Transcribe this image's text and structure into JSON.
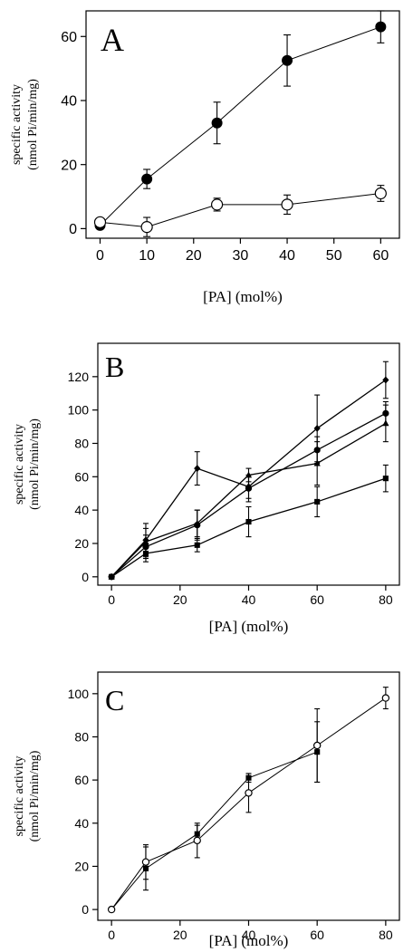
{
  "chart_data": [
    {
      "type": "line",
      "panel_label": "A",
      "xlabel": "[PA] (mol%)",
      "ylabel_lines": [
        "specific activity",
        "(nmol Pi/min/mg)"
      ],
      "xlim": [
        -3,
        64
      ],
      "ylim": [
        -3,
        68
      ],
      "x_ticks": [
        0,
        10,
        20,
        30,
        40,
        50,
        60
      ],
      "y_ticks": [
        0,
        20,
        40,
        60
      ],
      "grid": false,
      "series": [
        {
          "marker": "filled-circle",
          "x": [
            0,
            10,
            25,
            40,
            60
          ],
          "y": [
            1,
            15.5,
            33,
            52.5,
            63
          ],
          "err": [
            0.5,
            3,
            6.5,
            8,
            5
          ]
        },
        {
          "marker": "open-circle",
          "x": [
            0,
            10,
            25,
            40,
            60
          ],
          "y": [
            2,
            0.5,
            7.5,
            7.5,
            11
          ],
          "err": [
            0.5,
            3,
            2,
            3,
            2.5
          ]
        }
      ]
    },
    {
      "type": "line",
      "panel_label": "B",
      "xlabel": "[PA] (mol%)",
      "ylabel_lines": [
        "specific activity",
        "(nmol Pi/min/mg)"
      ],
      "xlim": [
        -4,
        84
      ],
      "ylim": [
        -5,
        140
      ],
      "x_ticks": [
        0,
        20,
        40,
        60,
        80
      ],
      "y_ticks": [
        0,
        20,
        40,
        60,
        80,
        100,
        120
      ],
      "grid": false,
      "series": [
        {
          "marker": "diamond",
          "x": [
            0,
            10,
            25,
            40,
            60,
            80
          ],
          "y": [
            0,
            22,
            65,
            54,
            89,
            118
          ],
          "err": [
            0,
            10,
            10,
            7,
            20,
            11
          ]
        },
        {
          "marker": "filled-circle",
          "x": [
            0,
            10,
            25,
            40,
            60,
            80
          ],
          "y": [
            0,
            18,
            31,
            53,
            76,
            98
          ],
          "err": [
            0,
            7,
            9,
            8,
            8,
            7
          ]
        },
        {
          "marker": "triangle",
          "x": [
            0,
            10,
            25,
            40,
            60,
            80
          ],
          "y": [
            0,
            21,
            32,
            61,
            68,
            92
          ],
          "err": [
            0,
            8,
            8,
            4,
            13,
            11
          ]
        },
        {
          "marker": "square",
          "x": [
            0,
            10,
            25,
            40,
            60,
            80
          ],
          "y": [
            0,
            14,
            19,
            33,
            45,
            59
          ],
          "err": [
            0,
            5,
            4,
            9,
            9,
            8
          ]
        }
      ]
    },
    {
      "type": "line",
      "panel_label": "C",
      "xlabel": "[PA] (mol%)",
      "ylabel_lines": [
        "specific activity",
        "(nmol Pi/min/mg)"
      ],
      "xlim": [
        -4,
        84
      ],
      "ylim": [
        -5,
        110
      ],
      "x_ticks": [
        0,
        20,
        40,
        60,
        80
      ],
      "y_ticks": [
        0,
        20,
        40,
        60,
        80,
        100
      ],
      "grid": false,
      "series": [
        {
          "marker": "square",
          "x": [
            0,
            10,
            25,
            40,
            60
          ],
          "y": [
            0,
            19,
            35,
            61,
            73
          ],
          "err": [
            0,
            10,
            4,
            2,
            14
          ]
        },
        {
          "marker": "open-circle",
          "x": [
            0,
            10,
            25,
            40,
            60,
            80
          ],
          "y": [
            0,
            22,
            32,
            54,
            76,
            98
          ],
          "err": [
            0,
            8,
            8,
            9,
            17,
            5
          ]
        }
      ]
    }
  ]
}
